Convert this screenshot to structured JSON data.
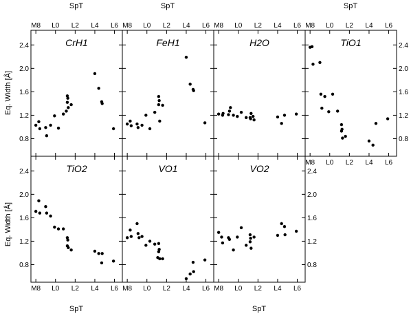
{
  "chart_data": {
    "type": "scatter",
    "xlabel": "SpT",
    "ylabel": "Eq. Width [Å]",
    "x_ticks": [
      "M8",
      "L0",
      "L2",
      "L4",
      "L6"
    ],
    "x_tick_values": [
      -2,
      0,
      2,
      4,
      6
    ],
    "xlim": [
      -2.5,
      6.8
    ],
    "y_ticks": [
      "0.8",
      "1.2",
      "1.6",
      "2.0",
      "2.4"
    ],
    "y_tick_values": [
      0.8,
      1.2,
      1.6,
      2.0,
      2.4
    ],
    "ylim": [
      0.5,
      2.65
    ],
    "grid": false,
    "panels": [
      {
        "title": "CrH1",
        "points": [
          {
            "x": -2.0,
            "y": 1.03
          },
          {
            "x": -1.7,
            "y": 1.09
          },
          {
            "x": -1.6,
            "y": 0.97
          },
          {
            "x": -1.0,
            "y": 0.99
          },
          {
            "x": -0.9,
            "y": 0.85
          },
          {
            "x": -0.5,
            "y": 1.03
          },
          {
            "x": -0.1,
            "y": 1.19
          },
          {
            "x": 0.3,
            "y": 0.98
          },
          {
            "x": 0.8,
            "y": 1.22
          },
          {
            "x": 1.2,
            "y": 1.53
          },
          {
            "x": 1.25,
            "y": 1.49
          },
          {
            "x": 1.2,
            "y": 1.42
          },
          {
            "x": 1.3,
            "y": 1.33
          },
          {
            "x": 1.6,
            "y": 1.38
          },
          {
            "x": 1.1,
            "y": 1.27
          },
          {
            "x": 4.0,
            "y": 1.91
          },
          {
            "x": 4.4,
            "y": 1.66
          },
          {
            "x": 4.7,
            "y": 1.43
          },
          {
            "x": 4.75,
            "y": 1.4
          },
          {
            "x": 5.9,
            "y": 0.97
          }
        ]
      },
      {
        "title": "FeH1",
        "points": [
          {
            "x": -2.0,
            "y": 1.05
          },
          {
            "x": -1.7,
            "y": 1.1
          },
          {
            "x": -1.6,
            "y": 1.02
          },
          {
            "x": -1.0,
            "y": 1.05
          },
          {
            "x": -0.9,
            "y": 0.99
          },
          {
            "x": -0.5,
            "y": 1.03
          },
          {
            "x": -0.1,
            "y": 1.2
          },
          {
            "x": 0.3,
            "y": 0.97
          },
          {
            "x": 0.8,
            "y": 1.25
          },
          {
            "x": 1.2,
            "y": 1.52
          },
          {
            "x": 1.25,
            "y": 1.45
          },
          {
            "x": 1.2,
            "y": 1.38
          },
          {
            "x": 1.3,
            "y": 1.1
          },
          {
            "x": 1.6,
            "y": 1.37
          },
          {
            "x": 4.0,
            "y": 2.19
          },
          {
            "x": 4.4,
            "y": 1.73
          },
          {
            "x": 4.7,
            "y": 1.64
          },
          {
            "x": 4.75,
            "y": 1.62
          },
          {
            "x": 5.9,
            "y": 1.07
          }
        ]
      },
      {
        "title": "H2O",
        "points": [
          {
            "x": -2.0,
            "y": 1.22
          },
          {
            "x": -1.6,
            "y": 1.2
          },
          {
            "x": -1.55,
            "y": 1.23
          },
          {
            "x": -1.0,
            "y": 1.21
          },
          {
            "x": -0.9,
            "y": 1.27
          },
          {
            "x": -0.8,
            "y": 1.33
          },
          {
            "x": -0.5,
            "y": 1.2
          },
          {
            "x": -0.1,
            "y": 1.18
          },
          {
            "x": 0.3,
            "y": 1.25
          },
          {
            "x": 0.8,
            "y": 1.16
          },
          {
            "x": 1.2,
            "y": 1.16
          },
          {
            "x": 1.25,
            "y": 1.14
          },
          {
            "x": 1.3,
            "y": 1.23
          },
          {
            "x": 1.6,
            "y": 1.12
          },
          {
            "x": 1.5,
            "y": 1.18
          },
          {
            "x": 4.0,
            "y": 1.17
          },
          {
            "x": 4.4,
            "y": 1.06
          },
          {
            "x": 4.7,
            "y": 1.2
          },
          {
            "x": 5.9,
            "y": 1.22
          }
        ]
      },
      {
        "title": "TiO1",
        "points": [
          {
            "x": -2.0,
            "y": 2.36
          },
          {
            "x": -1.8,
            "y": 2.37
          },
          {
            "x": -1.7,
            "y": 2.07
          },
          {
            "x": -1.0,
            "y": 2.1
          },
          {
            "x": -0.9,
            "y": 1.56
          },
          {
            "x": -0.5,
            "y": 1.52
          },
          {
            "x": -0.8,
            "y": 1.32
          },
          {
            "x": -0.1,
            "y": 1.26
          },
          {
            "x": 0.3,
            "y": 1.56
          },
          {
            "x": 0.8,
            "y": 1.27
          },
          {
            "x": 1.2,
            "y": 1.04
          },
          {
            "x": 1.25,
            "y": 0.96
          },
          {
            "x": 1.2,
            "y": 0.93
          },
          {
            "x": 1.3,
            "y": 0.81
          },
          {
            "x": 1.6,
            "y": 0.84
          },
          {
            "x": 4.0,
            "y": 0.76
          },
          {
            "x": 4.4,
            "y": 0.69
          },
          {
            "x": 4.7,
            "y": 1.06
          },
          {
            "x": 5.9,
            "y": 1.14
          }
        ]
      },
      {
        "title": "TiO2",
        "points": [
          {
            "x": -2.0,
            "y": 1.71
          },
          {
            "x": -1.7,
            "y": 1.89
          },
          {
            "x": -1.6,
            "y": 1.68
          },
          {
            "x": -1.0,
            "y": 1.79
          },
          {
            "x": -0.9,
            "y": 1.68
          },
          {
            "x": -0.5,
            "y": 1.63
          },
          {
            "x": -0.1,
            "y": 1.44
          },
          {
            "x": 0.3,
            "y": 1.41
          },
          {
            "x": 0.8,
            "y": 1.41
          },
          {
            "x": 1.2,
            "y": 1.26
          },
          {
            "x": 1.25,
            "y": 1.22
          },
          {
            "x": 1.2,
            "y": 1.12
          },
          {
            "x": 1.3,
            "y": 1.09
          },
          {
            "x": 1.6,
            "y": 1.05
          },
          {
            "x": 4.0,
            "y": 1.03
          },
          {
            "x": 4.4,
            "y": 0.99
          },
          {
            "x": 4.7,
            "y": 0.83
          },
          {
            "x": 4.75,
            "y": 0.99
          },
          {
            "x": 5.9,
            "y": 0.86
          }
        ]
      },
      {
        "title": "VO1",
        "points": [
          {
            "x": -2.0,
            "y": 1.26
          },
          {
            "x": -1.7,
            "y": 1.39
          },
          {
            "x": -1.6,
            "y": 1.28
          },
          {
            "x": -1.0,
            "y": 1.5
          },
          {
            "x": -0.9,
            "y": 1.33
          },
          {
            "x": -0.5,
            "y": 1.28
          },
          {
            "x": -0.8,
            "y": 1.26
          },
          {
            "x": -0.1,
            "y": 1.13
          },
          {
            "x": 0.3,
            "y": 1.2
          },
          {
            "x": 0.8,
            "y": 1.15
          },
          {
            "x": 1.2,
            "y": 1.16
          },
          {
            "x": 1.25,
            "y": 1.06
          },
          {
            "x": 1.2,
            "y": 1.02
          },
          {
            "x": 1.3,
            "y": 0.9
          },
          {
            "x": 1.6,
            "y": 0.9
          },
          {
            "x": 1.1,
            "y": 0.92
          },
          {
            "x": 4.0,
            "y": 0.56
          },
          {
            "x": 4.4,
            "y": 0.64
          },
          {
            "x": 4.7,
            "y": 0.84
          },
          {
            "x": 4.75,
            "y": 0.68
          },
          {
            "x": 5.9,
            "y": 0.88
          }
        ]
      },
      {
        "title": "VO2",
        "points": [
          {
            "x": -2.0,
            "y": 1.35
          },
          {
            "x": -1.7,
            "y": 1.27
          },
          {
            "x": -1.6,
            "y": 1.17
          },
          {
            "x": -1.0,
            "y": 1.26
          },
          {
            "x": -0.9,
            "y": 1.23
          },
          {
            "x": -0.5,
            "y": 1.05
          },
          {
            "x": -0.1,
            "y": 1.27
          },
          {
            "x": 0.3,
            "y": 1.43
          },
          {
            "x": 0.8,
            "y": 1.13
          },
          {
            "x": 1.2,
            "y": 1.31
          },
          {
            "x": 1.25,
            "y": 1.25
          },
          {
            "x": 1.2,
            "y": 1.19
          },
          {
            "x": 1.3,
            "y": 1.08
          },
          {
            "x": 1.6,
            "y": 1.27
          },
          {
            "x": 4.0,
            "y": 1.3
          },
          {
            "x": 4.4,
            "y": 1.5
          },
          {
            "x": 4.7,
            "y": 1.45
          },
          {
            "x": 4.75,
            "y": 1.31
          },
          {
            "x": 5.9,
            "y": 1.37
          }
        ]
      }
    ]
  }
}
